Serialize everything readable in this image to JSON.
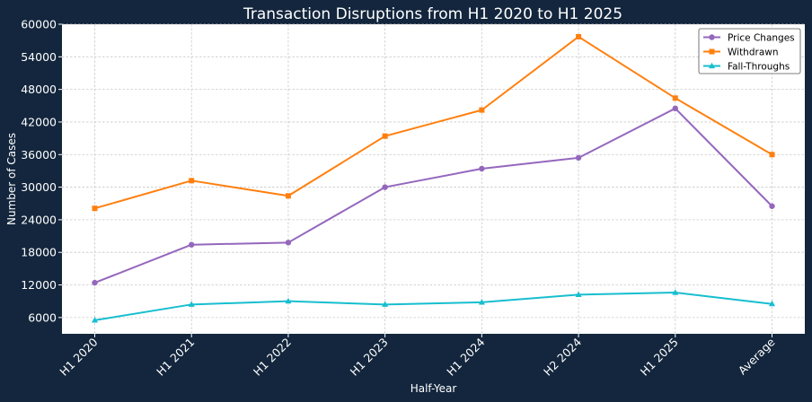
{
  "chart_data": {
    "type": "line",
    "title": "Transaction Disruptions from H1 2020 to H1 2025",
    "xlabel": "Half-Year",
    "ylabel": "Number of Cases",
    "categories": [
      "H1 2020",
      "H1 2021",
      "H1 2022",
      "H1 2023",
      "H1 2024",
      "H2 2024",
      "H1 2025",
      "Average"
    ],
    "ylim": [
      3000,
      60000
    ],
    "yticks": [
      6000,
      12000,
      18000,
      24000,
      30000,
      36000,
      42000,
      48000,
      54000,
      60000
    ],
    "grid": true,
    "legend_position": "top-right",
    "series": [
      {
        "name": "Price Changes",
        "color": "#9467bd",
        "marker": "circle",
        "values": [
          12400,
          19400,
          19800,
          30000,
          33400,
          35400,
          44500,
          26500
        ]
      },
      {
        "name": "Withdrawn",
        "color": "#ff7f0e",
        "marker": "square",
        "values": [
          26100,
          31200,
          28400,
          39400,
          44200,
          57700,
          46400,
          36000
        ]
      },
      {
        "name": "Fall-Throughs",
        "color": "#17becf",
        "marker": "triangle",
        "values": [
          5500,
          8400,
          9000,
          8400,
          8800,
          10200,
          10600,
          8500
        ]
      }
    ]
  },
  "colors": {
    "background": "#13263d",
    "plot_background": "#ffffff",
    "grid": "#c8c8c8"
  }
}
